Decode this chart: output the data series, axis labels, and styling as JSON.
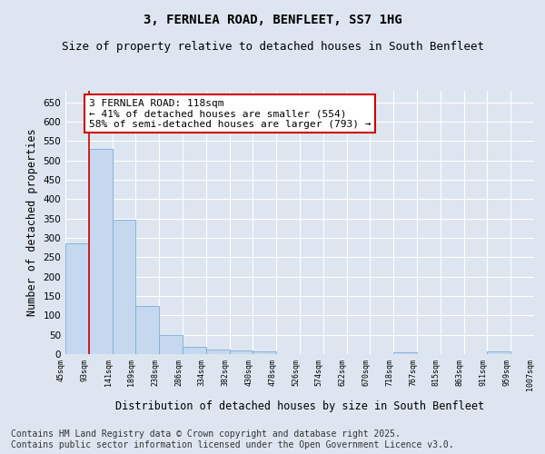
{
  "title": "3, FERNLEA ROAD, BENFLEET, SS7 1HG",
  "subtitle": "Size of property relative to detached houses in South Benfleet",
  "xlabel": "Distribution of detached houses by size in South Benfleet",
  "ylabel": "Number of detached properties",
  "bar_values": [
    285,
    530,
    348,
    125,
    50,
    18,
    12,
    9,
    6,
    0,
    0,
    0,
    0,
    0,
    4,
    0,
    0,
    0,
    6,
    0
  ],
  "categories": [
    "45sqm",
    "93sqm",
    "141sqm",
    "189sqm",
    "238sqm",
    "286sqm",
    "334sqm",
    "382sqm",
    "430sqm",
    "478sqm",
    "526sqm",
    "574sqm",
    "622sqm",
    "670sqm",
    "718sqm",
    "767sqm",
    "815sqm",
    "863sqm",
    "911sqm",
    "959sqm",
    "1007sqm"
  ],
  "bar_color": "#c5d8f0",
  "bar_edge_color": "#7badd4",
  "vline_color": "#cc0000",
  "annotation_box_text": "3 FERNLEA ROAD: 118sqm\n← 41% of detached houses are smaller (554)\n58% of semi-detached houses are larger (793) →",
  "annotation_box_color": "#cc0000",
  "annotation_box_bg": "#ffffff",
  "ylim": [
    0,
    680
  ],
  "yticks": [
    0,
    50,
    100,
    150,
    200,
    250,
    300,
    350,
    400,
    450,
    500,
    550,
    600,
    650
  ],
  "bg_color": "#dde5f0",
  "plot_bg_color": "#dde5f0",
  "footer_text": "Contains HM Land Registry data © Crown copyright and database right 2025.\nContains public sector information licensed under the Open Government Licence v3.0.",
  "title_fontsize": 10,
  "subtitle_fontsize": 9,
  "xlabel_fontsize": 8.5,
  "ylabel_fontsize": 8.5,
  "footer_fontsize": 7,
  "annotation_fontsize": 8
}
